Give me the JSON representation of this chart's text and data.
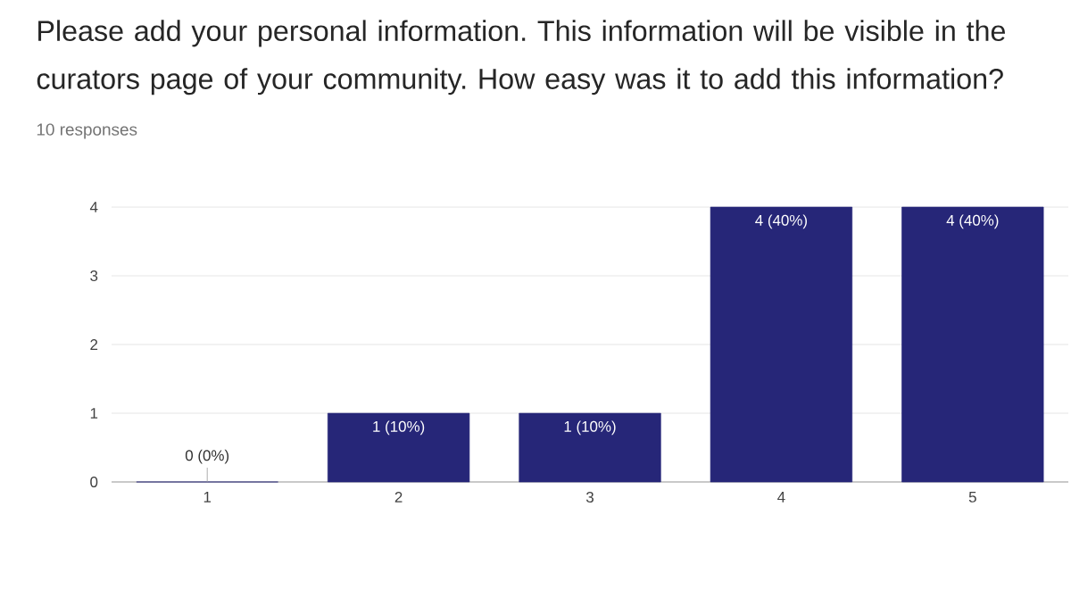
{
  "chart_data": {
    "type": "bar",
    "title": "Please add your personal information. This information will be visible in the curators page of your community. How easy was it to add this information?",
    "subtitle": "10 responses",
    "categories": [
      "1",
      "2",
      "3",
      "4",
      "5"
    ],
    "values": [
      0,
      1,
      1,
      4,
      4
    ],
    "value_labels": [
      "0 (0%)",
      "1 (10%)",
      "1 (10%)",
      "4 (40%)",
      "4 (40%)"
    ],
    "color": "#262678",
    "ylim": [
      0,
      4
    ],
    "yticks": [
      0,
      1,
      2,
      3,
      4
    ],
    "grid": "y"
  }
}
